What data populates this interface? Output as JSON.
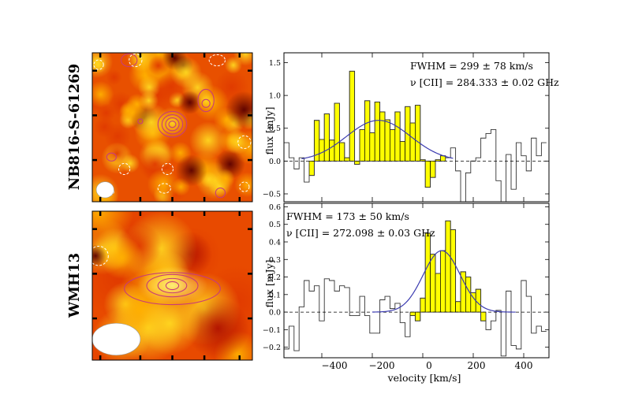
{
  "figure": {
    "source_labels": [
      "NB816-S-61269",
      "WMH13"
    ],
    "xlabel": "velocity [km/s]",
    "ylabel": "flux [mJy]",
    "x_ticks": [
      "−400",
      "−200",
      "0",
      "200",
      "400"
    ],
    "colors": {
      "spectrum_fill": "#ffff00",
      "gaussian": "#3b3bb0",
      "map_dark": "#5a0000",
      "map_mid": "#e03a00",
      "map_light": "#ffd820",
      "contour_positive": "#c83c78",
      "contour_negative": "#ffffff",
      "beam": "#ffffff"
    }
  },
  "chart_data": [
    {
      "type": "image",
      "title": "NB816-S-61269",
      "description_of_content": "[CII] intensity map with positive (solid) and negative (dashed) contours; beam ellipse at lower-left",
      "beam": "lower-left"
    },
    {
      "type": "bar",
      "step_histogram": true,
      "annotations": [
        "FWHM = 299 ± 78 km/s",
        "ν [CII] = 284.333 ± 0.02 GHz"
      ],
      "xlabel": "velocity [km/s]",
      "ylabel": "flux [mJy]",
      "xlim": [
        -550,
        500
      ],
      "ylim": [
        -0.62,
        1.65
      ],
      "y_ticks": [
        "1.5",
        "1.0",
        "0.5",
        "0.0",
        "−0.5"
      ],
      "y_tick_values": [
        1.5,
        1.0,
        0.5,
        0.0,
        -0.5
      ],
      "channel_width": 20,
      "x": [
        -540,
        -520,
        -500,
        -480,
        -460,
        -440,
        -420,
        -400,
        -380,
        -360,
        -340,
        -320,
        -300,
        -280,
        -260,
        -240,
        -220,
        -200,
        -180,
        -160,
        -140,
        -120,
        -100,
        -80,
        -60,
        -40,
        -20,
        0,
        20,
        40,
        60,
        80,
        100,
        120,
        140,
        160,
        180,
        200,
        220,
        240,
        260,
        280,
        300,
        320,
        340,
        360,
        380,
        400,
        420,
        440,
        460,
        480
      ],
      "values": [
        0.28,
        0.05,
        -0.12,
        0.05,
        -0.32,
        -0.22,
        0.62,
        0.33,
        0.72,
        0.32,
        0.88,
        0.28,
        0.05,
        1.37,
        -0.05,
        0.48,
        0.92,
        0.43,
        0.9,
        0.75,
        0.63,
        0.48,
        0.75,
        0.3,
        0.83,
        0.58,
        0.85,
        0.02,
        -0.4,
        -0.25,
        0.02,
        0.08,
        0.05,
        0.2,
        -0.15,
        -0.62,
        -0.18,
        0.0,
        0.05,
        0.35,
        0.42,
        0.48,
        -0.3,
        -0.62,
        0.1,
        -0.43,
        0.28,
        0.08,
        -0.15,
        0.35,
        0.08,
        0.28
      ],
      "line_channels_vrange": [
        -440,
        80
      ],
      "series": [
        {
          "name": "",
          "type": "line",
          "model": "gaussian",
          "amplitude": 0.62,
          "center": -175,
          "fwhm": 299,
          "xrange": [
            -480,
            120
          ]
        }
      ],
      "reference_line": 0.0
    },
    {
      "type": "image",
      "title": "WMH13",
      "description_of_content": "[CII] intensity map with positive (solid) and negative (dashed) contours; beam ellipse at lower-left",
      "beam": "lower-left"
    },
    {
      "type": "bar",
      "step_histogram": true,
      "annotations": [
        "FWHM = 173 ± 50 km/s",
        "ν [CII] = 272.098 ± 0.03 GHz"
      ],
      "xlabel": "velocity [km/s]",
      "ylabel": "flux [mJy]",
      "xlim": [
        -550,
        500
      ],
      "ylim": [
        -0.26,
        0.62
      ],
      "y_ticks": [
        "0.6",
        "0.5",
        "0.4",
        "0.3",
        "0.2",
        "0.1",
        "0.0",
        "−0.1",
        "−0.2"
      ],
      "y_tick_values": [
        0.6,
        0.5,
        0.4,
        0.3,
        0.2,
        0.1,
        0.0,
        -0.1,
        -0.2
      ],
      "channel_width": 20,
      "x": [
        -540,
        -520,
        -500,
        -480,
        -460,
        -440,
        -420,
        -400,
        -380,
        -360,
        -340,
        -320,
        -300,
        -280,
        -260,
        -240,
        -220,
        -200,
        -180,
        -160,
        -140,
        -120,
        -100,
        -80,
        -60,
        -40,
        -20,
        0,
        20,
        40,
        60,
        80,
        100,
        120,
        140,
        160,
        180,
        200,
        220,
        240,
        260,
        280,
        300,
        320,
        340,
        360,
        380,
        400,
        420,
        440,
        460,
        480
      ],
      "values": [
        -0.21,
        -0.08,
        -0.22,
        0.03,
        0.18,
        0.12,
        0.15,
        -0.05,
        0.19,
        0.18,
        0.12,
        0.15,
        0.14,
        -0.02,
        -0.02,
        0.09,
        -0.02,
        -0.12,
        -0.12,
        0.07,
        0.09,
        0.02,
        0.05,
        -0.06,
        -0.14,
        -0.02,
        -0.05,
        0.08,
        0.45,
        0.33,
        0.22,
        0.35,
        0.52,
        0.47,
        0.06,
        0.23,
        0.2,
        0.11,
        0.13,
        -0.05,
        -0.1,
        -0.05,
        0.01,
        -0.25,
        0.12,
        -0.19,
        -0.21,
        0.18,
        0.09,
        -0.12,
        -0.08,
        -0.11
      ],
      "line_channels_vrange": [
        -40,
        240
      ],
      "series": [
        {
          "name": "",
          "type": "line",
          "model": "gaussian",
          "amplitude": 0.35,
          "center": 75,
          "fwhm": 173,
          "xrange": [
            -200,
            370
          ]
        }
      ],
      "reference_line": 0.0
    }
  ]
}
